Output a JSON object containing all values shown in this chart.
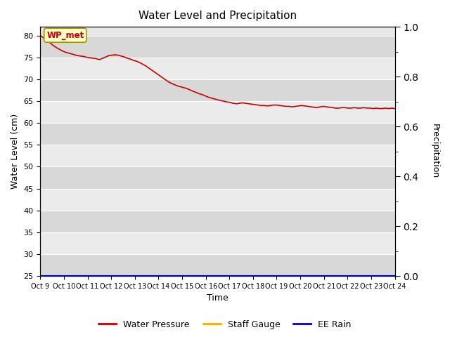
{
  "title": "Water Level and Precipitation",
  "xlabel": "Time",
  "ylabel_left": "Water Level (cm)",
  "ylabel_right": "Precipitation",
  "annotation_text": "WP_met",
  "ylim_left": [
    25,
    82
  ],
  "ylim_right": [
    0.0,
    1.0
  ],
  "yticks_left": [
    25,
    30,
    35,
    40,
    45,
    50,
    55,
    60,
    65,
    70,
    75,
    80
  ],
  "yticks_right": [
    0.0,
    0.2,
    0.4,
    0.6,
    0.8,
    1.0
  ],
  "xtick_labels": [
    "Oct 9",
    "Oct 10",
    "Oct 11",
    "Oct 12",
    "Oct 13",
    "Oct 14",
    "Oct 15",
    "Oct 16",
    "Oct 17",
    "Oct 18",
    "Oct 19",
    "Oct 20",
    "Oct 21",
    "Oct 22",
    "Oct 23",
    "Oct 24"
  ],
  "water_pressure_color": "#cc0000",
  "staff_gauge_color": "#ffaa00",
  "ee_rain_color": "#0000bb",
  "bg_color": "#e8e8e8",
  "band_light": "#ebebeb",
  "band_dark": "#d8d8d8",
  "grid_color": "#ffffff",
  "legend_labels": [
    "Water Pressure",
    "Staff Gauge",
    "EE Rain"
  ],
  "water_pressure_y": [
    80.0,
    79.5,
    79.0,
    78.4,
    77.8,
    77.3,
    76.9,
    76.5,
    76.2,
    76.0,
    75.8,
    75.6,
    75.4,
    75.3,
    75.2,
    75.0,
    74.9,
    74.8,
    74.7,
    74.5,
    74.8,
    75.1,
    75.4,
    75.5,
    75.6,
    75.5,
    75.3,
    75.1,
    74.8,
    74.6,
    74.3,
    74.1,
    73.8,
    73.4,
    73.0,
    72.5,
    72.0,
    71.5,
    71.0,
    70.5,
    70.0,
    69.5,
    69.1,
    68.8,
    68.5,
    68.3,
    68.1,
    67.9,
    67.6,
    67.3,
    67.0,
    66.7,
    66.5,
    66.2,
    65.9,
    65.7,
    65.5,
    65.3,
    65.1,
    65.0,
    64.8,
    64.7,
    64.5,
    64.4,
    64.5,
    64.6,
    64.5,
    64.4,
    64.3,
    64.2,
    64.1,
    64.0,
    64.0,
    63.9,
    64.0,
    64.1,
    64.1,
    64.0,
    63.9,
    63.8,
    63.8,
    63.7,
    63.8,
    63.9,
    64.0,
    63.9,
    63.8,
    63.7,
    63.6,
    63.5,
    63.7,
    63.8,
    63.7,
    63.6,
    63.5,
    63.4,
    63.4,
    63.5,
    63.5,
    63.4,
    63.4,
    63.5,
    63.4,
    63.4,
    63.5,
    63.4,
    63.4,
    63.3,
    63.4,
    63.3,
    63.3,
    63.4,
    63.3,
    63.4,
    63.3
  ]
}
